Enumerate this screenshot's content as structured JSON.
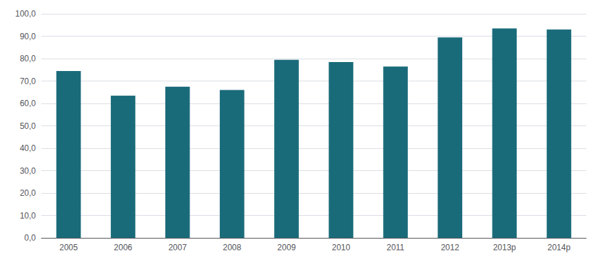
{
  "chart_data": {
    "type": "bar",
    "categories": [
      "2005",
      "2006",
      "2007",
      "2008",
      "2009",
      "2010",
      "2011",
      "2012",
      "2013p",
      "2014p"
    ],
    "values": [
      74.5,
      63.5,
      67.5,
      66.0,
      79.5,
      78.5,
      76.5,
      89.5,
      93.5,
      93.0
    ],
    "color": "#1a6b7a",
    "ylim": [
      0,
      100
    ],
    "yticks": [
      {
        "value": 0,
        "label": "0,0"
      },
      {
        "value": 10,
        "label": "10,0"
      },
      {
        "value": 20,
        "label": "20,0"
      },
      {
        "value": 30,
        "label": "30,0"
      },
      {
        "value": 40,
        "label": "40,0"
      },
      {
        "value": 50,
        "label": "50,0"
      },
      {
        "value": 60,
        "label": "60,0"
      },
      {
        "value": 70,
        "label": "70,0"
      },
      {
        "value": 80,
        "label": "80,0"
      },
      {
        "value": 90,
        "label": "90,0"
      },
      {
        "value": 100,
        "label": "100,0"
      }
    ],
    "grid": true
  }
}
